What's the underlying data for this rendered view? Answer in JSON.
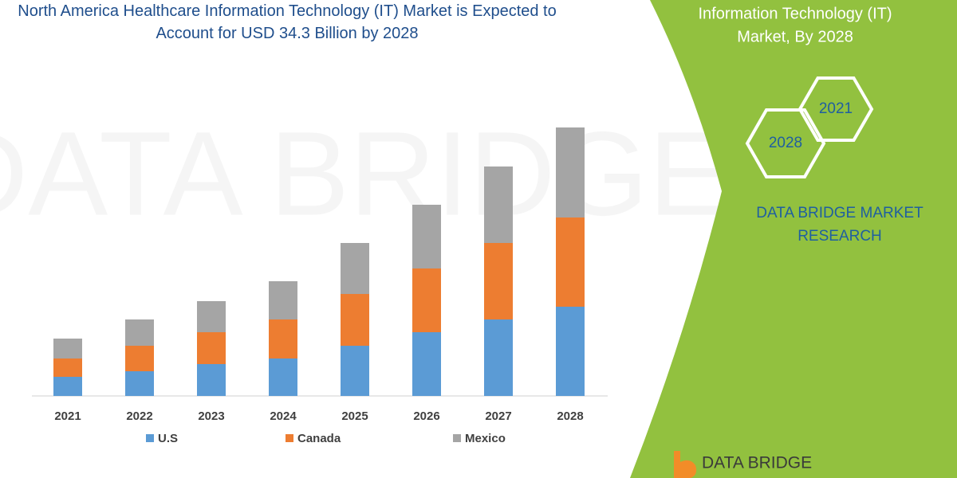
{
  "chart_data": {
    "type": "stacked-bar",
    "title": "North America Healthcare Information Technology (IT) Market is Expected to Account for USD 34.3 Billion by 2028",
    "categories": [
      "2021",
      "2022",
      "2023",
      "2024",
      "2025",
      "2026",
      "2027",
      "2028"
    ],
    "series": [
      {
        "name": "U.S",
        "color": "#5b9bd5",
        "values": [
          24,
          31,
          40,
          47,
          63,
          80,
          96,
          112
        ]
      },
      {
        "name": "Canada",
        "color": "#ed7d31",
        "values": [
          23,
          32,
          40,
          49,
          65,
          80,
          96,
          112
        ]
      },
      {
        "name": "Mexico",
        "color": "#a5a5a5",
        "values": [
          25,
          33,
          39,
          48,
          64,
          80,
          96,
          113
        ]
      }
    ]
  },
  "panel": {
    "heading": [
      "Information Technology (IT)",
      "Market, By 2028"
    ],
    "hexagons": [
      "2021",
      "2028"
    ],
    "brand": [
      "DATA BRIDGE MARKET",
      "RESEARCH"
    ],
    "logo": "DATA BRIDGE",
    "watermark": "DATA BRIDGE"
  }
}
